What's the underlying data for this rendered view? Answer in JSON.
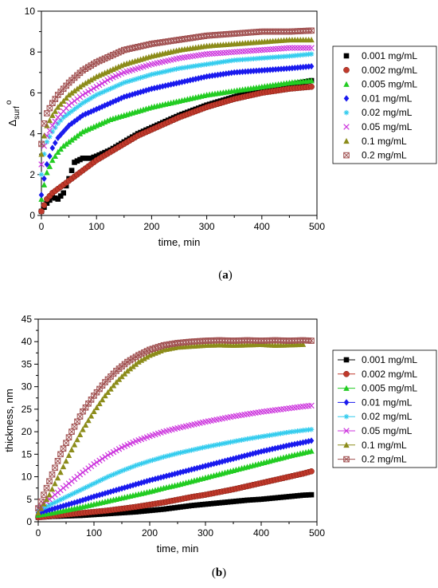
{
  "chart_data": [
    {
      "type": "scatter",
      "panel_label": "(a)",
      "xlabel": "time, min",
      "ylabel": "Δsurf°",
      "ylabel_main": "Δ",
      "ylabel_sub": "surf",
      "ylabel_sup": "o",
      "xlim": [
        0,
        500
      ],
      "ylim": [
        0,
        10
      ],
      "xticks": [
        0,
        100,
        200,
        300,
        400,
        500
      ],
      "yticks": [
        0,
        2,
        4,
        6,
        8,
        10
      ],
      "legend_position": "right",
      "series": [
        {
          "name": "0.001 mg/mL",
          "color": "#000000",
          "marker": "square",
          "x": [
            0,
            10,
            20,
            30,
            40,
            50,
            60,
            75,
            90,
            100,
            125,
            150,
            175,
            200,
            250,
            300,
            350,
            400,
            450,
            490
          ],
          "y": [
            0.2,
            0.6,
            0.9,
            0.8,
            1.1,
            1.8,
            2.6,
            2.8,
            2.8,
            2.9,
            3.2,
            3.6,
            4.0,
            4.3,
            4.9,
            5.4,
            5.8,
            6.2,
            6.4,
            6.6
          ]
        },
        {
          "name": "0.002 mg/mL",
          "color": "#c0392b",
          "marker": "circle",
          "x": [
            0,
            10,
            20,
            30,
            40,
            50,
            60,
            75,
            100,
            125,
            150,
            175,
            200,
            250,
            300,
            350,
            400,
            450,
            490
          ],
          "y": [
            0.2,
            0.8,
            1.1,
            1.3,
            1.5,
            1.7,
            1.9,
            2.2,
            2.7,
            3.1,
            3.5,
            3.9,
            4.2,
            4.8,
            5.3,
            5.7,
            6.0,
            6.2,
            6.3
          ]
        },
        {
          "name": "0.005 mg/mL",
          "color": "#22cc22",
          "marker": "triangle",
          "x": [
            0,
            5,
            10,
            20,
            30,
            40,
            50,
            75,
            100,
            125,
            150,
            200,
            250,
            300,
            350,
            400,
            450,
            490
          ],
          "y": [
            0.8,
            1.5,
            2.1,
            2.7,
            3.1,
            3.4,
            3.6,
            4.1,
            4.4,
            4.7,
            4.9,
            5.3,
            5.6,
            5.9,
            6.1,
            6.3,
            6.5,
            6.6
          ]
        },
        {
          "name": "0.01 mg/mL",
          "color": "#1a1aee",
          "marker": "diamond",
          "x": [
            0,
            5,
            10,
            20,
            30,
            40,
            50,
            75,
            100,
            125,
            150,
            200,
            250,
            300,
            350,
            400,
            450,
            490
          ],
          "y": [
            1.0,
            1.8,
            2.5,
            3.3,
            3.8,
            4.1,
            4.4,
            4.9,
            5.2,
            5.5,
            5.8,
            6.2,
            6.5,
            6.8,
            7.0,
            7.1,
            7.2,
            7.3
          ]
        },
        {
          "name": "0.02 mg/mL",
          "color": "#33ccee",
          "marker": "asterisk",
          "x": [
            0,
            5,
            10,
            20,
            30,
            40,
            50,
            75,
            100,
            125,
            150,
            200,
            250,
            300,
            350,
            400,
            450,
            490
          ],
          "y": [
            2.0,
            3.0,
            3.6,
            4.1,
            4.5,
            4.8,
            5.0,
            5.5,
            5.9,
            6.2,
            6.5,
            6.9,
            7.2,
            7.4,
            7.6,
            7.7,
            7.8,
            7.9
          ]
        },
        {
          "name": "0.05 mg/mL",
          "color": "#cc33dd",
          "marker": "x",
          "x": [
            0,
            5,
            10,
            20,
            30,
            40,
            50,
            75,
            100,
            125,
            150,
            200,
            250,
            300,
            350,
            400,
            450,
            490
          ],
          "y": [
            2.5,
            3.4,
            3.9,
            4.4,
            4.8,
            5.1,
            5.4,
            5.9,
            6.3,
            6.7,
            7.0,
            7.4,
            7.7,
            7.9,
            8.0,
            8.1,
            8.2,
            8.2
          ]
        },
        {
          "name": "0.1 mg/mL",
          "color": "#8c8c1a",
          "marker": "triangle",
          "x": [
            0,
            5,
            10,
            20,
            30,
            40,
            50,
            75,
            100,
            125,
            150,
            200,
            250,
            300,
            350,
            400,
            450,
            490
          ],
          "y": [
            3.0,
            3.9,
            4.4,
            4.9,
            5.3,
            5.6,
            5.9,
            6.4,
            6.8,
            7.1,
            7.4,
            7.8,
            8.1,
            8.3,
            8.4,
            8.5,
            8.6,
            8.6
          ]
        },
        {
          "name": "0.2 mg/mL",
          "color": "#a05050",
          "marker": "crossbox",
          "x": [
            0,
            5,
            10,
            20,
            30,
            40,
            50,
            75,
            100,
            125,
            150,
            200,
            250,
            300,
            350,
            400,
            450,
            490
          ],
          "y": [
            3.5,
            4.5,
            5.0,
            5.5,
            5.9,
            6.2,
            6.5,
            7.1,
            7.5,
            7.8,
            8.1,
            8.4,
            8.6,
            8.8,
            8.9,
            9.0,
            9.0,
            9.05
          ]
        }
      ]
    },
    {
      "type": "scatter",
      "panel_label": "(b)",
      "xlabel": "time, min",
      "ylabel": "thickness, nm",
      "xlim": [
        0,
        500
      ],
      "ylim": [
        0,
        45
      ],
      "xticks": [
        0,
        100,
        200,
        300,
        400,
        500
      ],
      "yticks": [
        0,
        5,
        10,
        15,
        20,
        25,
        30,
        35,
        40,
        45
      ],
      "legend_position": "right",
      "series": [
        {
          "name": "0.001 mg/mL",
          "color": "#000000",
          "marker": "square",
          "x": [
            0,
            25,
            50,
            75,
            100,
            125,
            150,
            175,
            200,
            225,
            250,
            275,
            300,
            325,
            350,
            375,
            400,
            425,
            450,
            475,
            490
          ],
          "y": [
            1.0,
            1.2,
            1.3,
            1.4,
            1.6,
            1.8,
            2.0,
            2.2,
            2.5,
            2.8,
            3.2,
            3.6,
            3.9,
            4.2,
            4.5,
            4.8,
            5.0,
            5.3,
            5.6,
            5.9,
            6.0
          ]
        },
        {
          "name": "0.002 mg/mL",
          "color": "#c0392b",
          "marker": "circle",
          "x": [
            0,
            25,
            50,
            75,
            100,
            125,
            150,
            175,
            200,
            225,
            250,
            275,
            300,
            325,
            350,
            375,
            400,
            425,
            450,
            475,
            490
          ],
          "y": [
            1.0,
            1.3,
            1.6,
            1.9,
            2.2,
            2.5,
            2.9,
            3.3,
            3.8,
            4.3,
            4.9,
            5.5,
            6.0,
            6.6,
            7.2,
            7.9,
            8.6,
            9.3,
            10.0,
            10.7,
            11.2
          ]
        },
        {
          "name": "0.005 mg/mL",
          "color": "#22cc22",
          "marker": "triangle",
          "x": [
            0,
            25,
            50,
            75,
            100,
            125,
            150,
            175,
            200,
            225,
            250,
            275,
            300,
            325,
            350,
            375,
            400,
            425,
            450,
            475,
            490
          ],
          "y": [
            1.5,
            2.0,
            2.6,
            3.2,
            3.9,
            4.6,
            5.3,
            6.0,
            6.7,
            7.5,
            8.2,
            9.0,
            9.8,
            10.6,
            11.4,
            12.2,
            13.0,
            13.8,
            14.6,
            15.3,
            15.7
          ]
        },
        {
          "name": "0.01 mg/mL",
          "color": "#1a1aee",
          "marker": "diamond",
          "x": [
            0,
            25,
            50,
            75,
            100,
            125,
            150,
            175,
            200,
            225,
            250,
            275,
            300,
            325,
            350,
            375,
            400,
            425,
            450,
            475,
            490
          ],
          "y": [
            2.0,
            2.8,
            3.7,
            4.6,
            5.6,
            6.5,
            7.4,
            8.3,
            9.2,
            10.0,
            10.8,
            11.6,
            12.4,
            13.2,
            14.0,
            14.8,
            15.6,
            16.3,
            17.0,
            17.6,
            18.0
          ]
        },
        {
          "name": "0.02 mg/mL",
          "color": "#33ccee",
          "marker": "asterisk",
          "x": [
            0,
            25,
            50,
            75,
            100,
            125,
            150,
            175,
            200,
            225,
            250,
            275,
            300,
            325,
            350,
            375,
            400,
            425,
            450,
            475,
            490
          ],
          "y": [
            2.5,
            4.0,
            5.5,
            7.0,
            8.5,
            10.0,
            11.3,
            12.5,
            13.5,
            14.4,
            15.2,
            15.9,
            16.6,
            17.2,
            17.8,
            18.4,
            18.9,
            19.4,
            19.9,
            20.3,
            20.5
          ]
        },
        {
          "name": "0.05 mg/mL",
          "color": "#cc33dd",
          "marker": "x",
          "x": [
            0,
            25,
            50,
            75,
            100,
            125,
            150,
            175,
            200,
            225,
            250,
            275,
            300,
            325,
            350,
            375,
            400,
            425,
            450,
            475,
            490
          ],
          "y": [
            3.0,
            5.5,
            8.0,
            10.5,
            12.8,
            14.8,
            16.5,
            17.9,
            19.0,
            20.0,
            20.8,
            21.5,
            22.2,
            22.8,
            23.4,
            23.9,
            24.4,
            24.8,
            25.2,
            25.6,
            25.8
          ]
        },
        {
          "name": "0.1 mg/mL",
          "color": "#8c8c1a",
          "marker": "triangle",
          "x": [
            0,
            20,
            40,
            60,
            80,
            100,
            120,
            140,
            160,
            180,
            200,
            225,
            250,
            275,
            300,
            325,
            350,
            375,
            400,
            425,
            450,
            475
          ],
          "y": [
            2.0,
            6.0,
            11.0,
            16.0,
            20.5,
            24.5,
            28.0,
            31.0,
            33.5,
            35.5,
            37.0,
            38.2,
            38.8,
            39.0,
            39.2,
            39.3,
            39.2,
            39.3,
            39.4,
            39.2,
            39.3,
            39.4
          ]
        },
        {
          "name": "0.2 mg/mL",
          "color": "#a05050",
          "marker": "crossbox",
          "x": [
            0,
            20,
            40,
            60,
            80,
            100,
            120,
            140,
            160,
            180,
            200,
            225,
            250,
            275,
            300,
            325,
            350,
            375,
            400,
            425,
            450,
            475,
            490
          ],
          "y": [
            3.0,
            9.0,
            15.0,
            20.0,
            24.5,
            28.0,
            31.0,
            33.5,
            35.5,
            37.0,
            38.2,
            39.2,
            39.7,
            40.0,
            40.2,
            40.3,
            40.2,
            40.3,
            40.2,
            40.3,
            40.2,
            40.3,
            40.2
          ]
        }
      ]
    }
  ]
}
